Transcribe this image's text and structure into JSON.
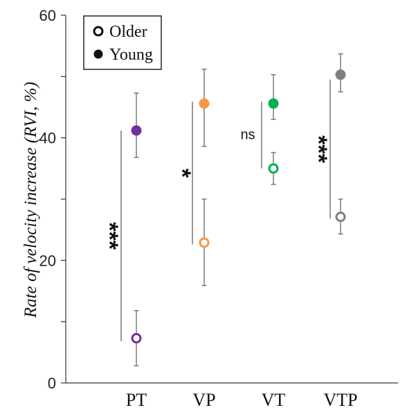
{
  "chart_data": {
    "type": "scatter",
    "title": "",
    "xlabel": "",
    "ylabel": "Rate of velocity increase (RVI, %)",
    "ylim": [
      0,
      60
    ],
    "yticks": [
      0,
      20,
      40,
      60
    ],
    "grid": false,
    "legend_position": "top-left",
    "categories": [
      "PT",
      "VP",
      "VT",
      "VTP"
    ],
    "colors": [
      "#7030a0",
      "#f79646",
      "#00b050",
      "#808080"
    ],
    "series": [
      {
        "name": "Older",
        "marker": "open-circle",
        "values": [
          7.3,
          22.9,
          35.0,
          27.1
        ],
        "error_low": [
          2.8,
          15.9,
          32.4,
          24.3
        ],
        "error_high": [
          11.8,
          30.0,
          37.6,
          30.0
        ]
      },
      {
        "name": "Young",
        "marker": "filled-circle",
        "values": [
          41.2,
          45.6,
          45.6,
          50.3
        ],
        "error_low": [
          36.8,
          38.6,
          43.0,
          47.5
        ],
        "error_high": [
          47.3,
          51.2,
          50.3,
          53.7
        ]
      }
    ],
    "significance": [
      {
        "category": "PT",
        "label": "***",
        "y_from": 6.8,
        "y_to": 41.2
      },
      {
        "category": "VP",
        "label": "*",
        "y_from": 22.6,
        "y_to": 45.9
      },
      {
        "category": "VT",
        "label": "ns",
        "y_from": 35.0,
        "y_to": 45.9
      },
      {
        "category": "VTP",
        "label": "***",
        "y_from": 26.8,
        "y_to": 49.5
      }
    ]
  }
}
